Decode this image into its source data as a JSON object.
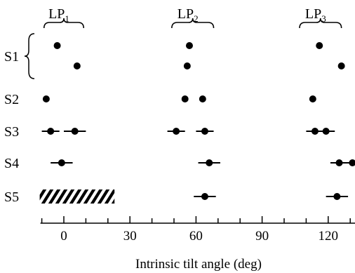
{
  "chart_data": {
    "type": "scatter",
    "xlabel": "Intrinsic tilt angle  (deg)",
    "xlim": [
      -10,
      135
    ],
    "xticks": [
      0,
      30,
      60,
      90,
      120
    ],
    "rows": [
      "S1",
      "S1",
      "S2",
      "S3",
      "S4",
      "S5"
    ],
    "row_labels": [
      "S1",
      "S2",
      "S3",
      "S4",
      "S5"
    ],
    "groups": [
      {
        "name": "LP",
        "sub": "1",
        "range": [
          -9,
          9
        ]
      },
      {
        "name": "LP",
        "sub": "2",
        "range": [
          49,
          68
        ]
      },
      {
        "name": "LP",
        "sub": "3",
        "range": [
          107,
          126
        ]
      }
    ],
    "points": [
      {
        "row": 0,
        "x": -3,
        "err": 0
      },
      {
        "row": 0,
        "x": 57,
        "err": 0
      },
      {
        "row": 0,
        "x": 116,
        "err": 0
      },
      {
        "row": 1,
        "x": 6,
        "err": 0
      },
      {
        "row": 1,
        "x": 56,
        "err": 0
      },
      {
        "row": 1,
        "x": 126,
        "err": 0
      },
      {
        "row": 2,
        "x": -8,
        "err": 0
      },
      {
        "row": 2,
        "x": 55,
        "err": 0
      },
      {
        "row": 2,
        "x": 63,
        "err": 0
      },
      {
        "row": 2,
        "x": 113,
        "err": 0
      },
      {
        "row": 3,
        "x": -6,
        "err": 4
      },
      {
        "row": 3,
        "x": 5,
        "err": 5
      },
      {
        "row": 3,
        "x": 51,
        "err": 4
      },
      {
        "row": 3,
        "x": 64,
        "err": 4
      },
      {
        "row": 3,
        "x": 114,
        "err": 4
      },
      {
        "row": 3,
        "x": 119,
        "err": 4
      },
      {
        "row": 4,
        "x": -1,
        "err": 5
      },
      {
        "row": 4,
        "x": 66,
        "err": 5
      },
      {
        "row": 4,
        "x": 125,
        "err": 4
      },
      {
        "row": 4,
        "x": 131,
        "err": 3
      },
      {
        "row": 5,
        "x": 64,
        "err": 5
      },
      {
        "row": 5,
        "x": 124,
        "err": 5
      }
    ],
    "hatched": {
      "row": 5,
      "range": [
        -10,
        23
      ]
    },
    "grid": false
  }
}
